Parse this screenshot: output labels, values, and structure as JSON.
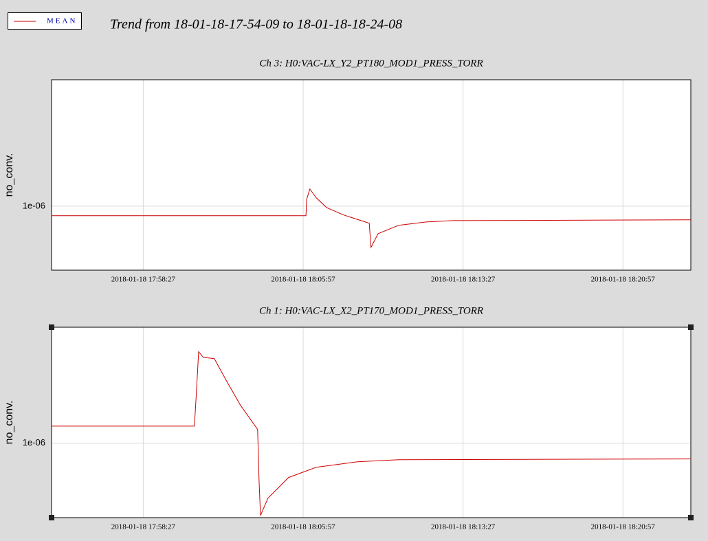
{
  "header": {
    "title": "Trend from 18-01-18-17-54-09 to 18-01-18-18-24-08"
  },
  "chart_data": [
    {
      "type": "line",
      "title": "Ch 3: H0:VAC-LX_Y2_PT180_MOD1_PRESS_TORR",
      "ylabel": "no_conv.",
      "ylog": true,
      "grid": true,
      "xlim": [
        "2018-01-18 17:54:09",
        "2018-01-18 18:24:08"
      ],
      "xticks": [
        "2018-01-18 17:58:27",
        "2018-01-18 18:05:57",
        "2018-01-18 18:13:27",
        "2018-01-18 18:20:57"
      ],
      "ylim": [
        6.95e-07,
        2.05e-06
      ],
      "yticks": [
        {
          "value": 1e-06,
          "label": "1e-06"
        }
      ],
      "series": [
        {
          "name": "MEAN",
          "color": "#cc0000",
          "x": [
            "2018-01-18 17:54:09",
            "2018-01-18 18:06:05",
            "2018-01-18 18:06:07",
            "2018-01-18 18:06:16",
            "2018-01-18 18:06:34",
            "2018-01-18 18:07:03",
            "2018-01-18 18:07:51",
            "2018-01-18 18:09:03",
            "2018-01-18 18:09:08",
            "2018-01-18 18:09:28",
            "2018-01-18 18:10:26",
            "2018-01-18 18:11:43",
            "2018-01-18 18:13:00",
            "2018-01-18 18:24:08"
          ],
          "values": [
            9.47e-07,
            9.47e-07,
            1.04e-06,
            1.102e-06,
            1.048e-06,
            9.92e-07,
            9.51e-07,
            9.07e-07,
            7.91e-07,
            8.55e-07,
            8.97e-07,
            9.14e-07,
            9.21e-07,
            9.25e-07
          ]
        }
      ]
    },
    {
      "type": "line",
      "title": "Ch 1: H0:VAC-LX_X2_PT170_MOD1_PRESS_TORR",
      "ylabel": "no_conv.",
      "ylog": true,
      "grid": true,
      "xlim": [
        "2018-01-18 17:54:09",
        "2018-01-18 18:24:08"
      ],
      "xticks": [
        "2018-01-18 17:58:27",
        "2018-01-18 18:05:57",
        "2018-01-18 18:13:27",
        "2018-01-18 18:20:57"
      ],
      "ylim": [
        6.74e-07,
        1.85e-06
      ],
      "yticks": [
        {
          "value": 1e-06,
          "label": "1e-06"
        }
      ],
      "series": [
        {
          "color": "#cc0000",
          "x": [
            "2018-01-18 17:54:09",
            "2018-01-18 18:00:51",
            "2018-01-18 18:00:55",
            "2018-01-18 18:01:03",
            "2018-01-18 18:01:16",
            "2018-01-18 18:01:47",
            "2018-01-18 18:02:22",
            "2018-01-18 18:03:01",
            "2018-01-18 18:03:49",
            "2018-01-18 18:03:53",
            "2018-01-18 18:03:57",
            "2018-01-18 18:04:18",
            "2018-01-18 18:05:16",
            "2018-01-18 18:06:34",
            "2018-01-18 18:08:30",
            "2018-01-18 18:10:26",
            "2018-01-18 18:24:08"
          ],
          "values": [
            1.095e-06,
            1.095e-06,
            1.244e-06,
            1.624e-06,
            1.577e-06,
            1.566e-06,
            1.388e-06,
            1.222e-06,
            1.076e-06,
            8.18e-07,
            6.82e-07,
            7.47e-07,
            8.34e-07,
            8.8e-07,
            9.06e-07,
            9.16e-07,
            9.2e-07
          ]
        }
      ]
    }
  ]
}
